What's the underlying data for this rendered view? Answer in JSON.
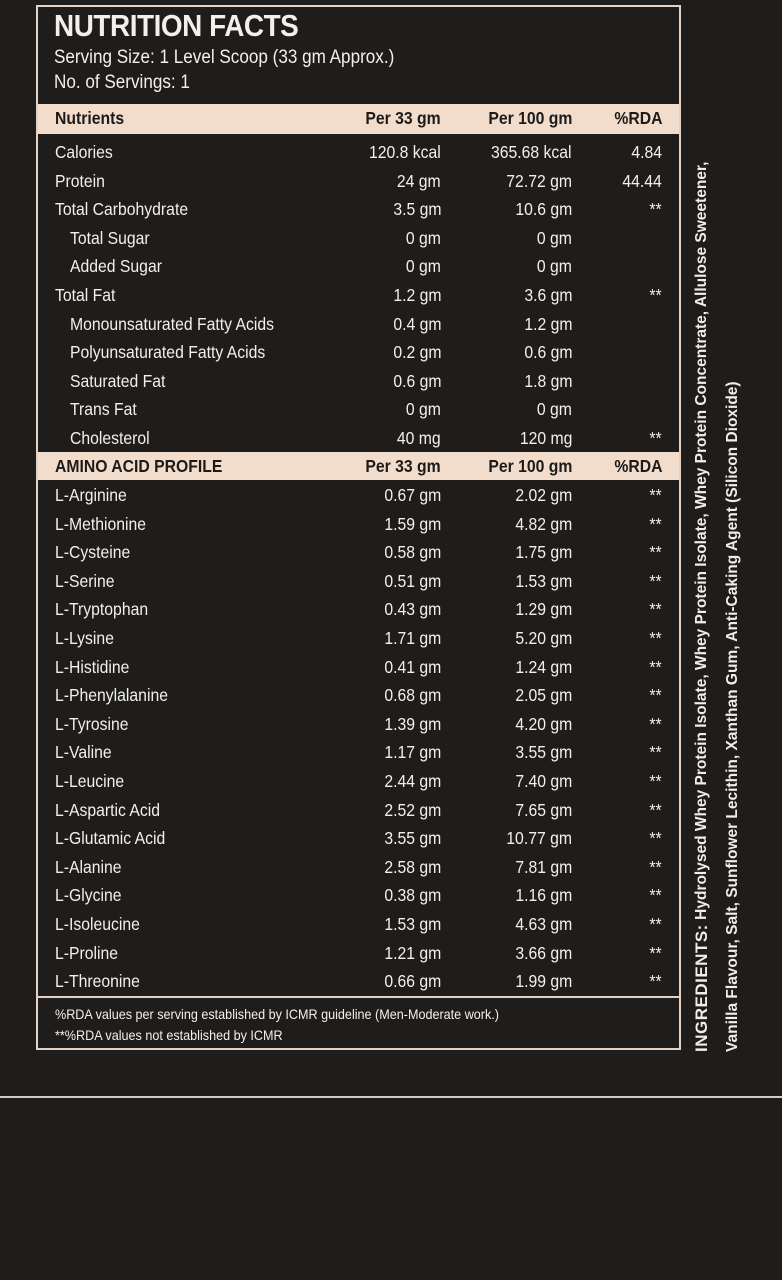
{
  "title": "NUTRITION FACTS",
  "serving_size": "Serving Size: 1 Level Scoop (33 gm Approx.)",
  "servings": "No. of Servings: 1",
  "nutrients_header": [
    "Nutrients",
    "Per 33 gm",
    "Per 100 gm",
    "%RDA"
  ],
  "nutrients": [
    {
      "name": "Calories",
      "per33": "120.8 kcal",
      "per100": "365.68 kcal",
      "rda": "4.84",
      "indent": false
    },
    {
      "name": "Protein",
      "per33": "24 gm",
      "per100": "72.72 gm",
      "rda": "44.44",
      "indent": false
    },
    {
      "name": "Total Carbohydrate",
      "per33": "3.5 gm",
      "per100": "10.6 gm",
      "rda": "**",
      "indent": false
    },
    {
      "name": "Total Sugar",
      "per33": "0 gm",
      "per100": "0 gm",
      "rda": "",
      "indent": true
    },
    {
      "name": "Added Sugar",
      "per33": "0 gm",
      "per100": "0 gm",
      "rda": "",
      "indent": true
    },
    {
      "name": "Total Fat",
      "per33": "1.2 gm",
      "per100": "3.6 gm",
      "rda": "**",
      "indent": false
    },
    {
      "name": "Monounsaturated Fatty Acids",
      "per33": "0.4 gm",
      "per100": "1.2 gm",
      "rda": "",
      "indent": true
    },
    {
      "name": "Polyunsaturated Fatty Acids",
      "per33": "0.2 gm",
      "per100": "0.6 gm",
      "rda": "",
      "indent": true
    },
    {
      "name": "Saturated Fat",
      "per33": "0.6 gm",
      "per100": "1.8 gm",
      "rda": "",
      "indent": true
    },
    {
      "name": "Trans Fat",
      "per33": "0 gm",
      "per100": "0 gm",
      "rda": "",
      "indent": true
    },
    {
      "name": "Cholesterol",
      "per33": "40 mg",
      "per100": "120 mg",
      "rda": "**",
      "indent": true
    }
  ],
  "amino_header": [
    "AMINO ACID PROFILE",
    "Per 33 gm",
    "Per 100 gm",
    "%RDA"
  ],
  "amino": [
    {
      "name": "L-Arginine",
      "per33": "0.67 gm",
      "per100": "2.02 gm",
      "rda": "**"
    },
    {
      "name": "L-Methionine",
      "per33": "1.59 gm",
      "per100": "4.82 gm",
      "rda": "**"
    },
    {
      "name": "L-Cysteine",
      "per33": "0.58 gm",
      "per100": "1.75 gm",
      "rda": "**"
    },
    {
      "name": "L-Serine",
      "per33": "0.51 gm",
      "per100": "1.53 gm",
      "rda": "**"
    },
    {
      "name": "L-Tryptophan",
      "per33": "0.43 gm",
      "per100": "1.29 gm",
      "rda": "**"
    },
    {
      "name": "L-Lysine",
      "per33": "1.71 gm",
      "per100": "5.20 gm",
      "rda": "**"
    },
    {
      "name": "L-Histidine",
      "per33": "0.41 gm",
      "per100": "1.24 gm",
      "rda": "**"
    },
    {
      "name": "L-Phenylalanine",
      "per33": "0.68 gm",
      "per100": "2.05 gm",
      "rda": "**"
    },
    {
      "name": "L-Tyrosine",
      "per33": "1.39 gm",
      "per100": "4.20 gm",
      "rda": "**"
    },
    {
      "name": "L-Valine",
      "per33": "1.17 gm",
      "per100": "3.55 gm",
      "rda": "**"
    },
    {
      "name": "L-Leucine",
      "per33": "2.44 gm",
      "per100": "7.40 gm",
      "rda": "**"
    },
    {
      "name": "L-Aspartic Acid",
      "per33": "2.52 gm",
      "per100": "7.65 gm",
      "rda": "**"
    },
    {
      "name": "L-Glutamic Acid",
      "per33": "3.55 gm",
      "per100": "10.77 gm",
      "rda": "**"
    },
    {
      "name": "L-Alanine",
      "per33": "2.58 gm",
      "per100": "7.81 gm",
      "rda": "**"
    },
    {
      "name": "L-Glycine",
      "per33": "0.38 gm",
      "per100": "1.16 gm",
      "rda": "**"
    },
    {
      "name": "L-Isoleucine",
      "per33": "1.53 gm",
      "per100": "4.63 gm",
      "rda": "**"
    },
    {
      "name": "L-Proline",
      "per33": "1.21 gm",
      "per100": "3.66 gm",
      "rda": "**"
    },
    {
      "name": "L-Threonine",
      "per33": "0.66 gm",
      "per100": "1.99 gm",
      "rda": "**"
    }
  ],
  "footnotes": [
    "%RDA values per serving established by ICMR guideline (Men-Moderate work.)",
    "**%RDA values not established by ICMR"
  ],
  "ingredients": {
    "label": "INGREDIENTS:",
    "line1": " Hydrolysed Whey Protein Isolate, Whey Protein Isolate, Whey Protein Concentrate, Allulose Sweetener,",
    "line2": "Vanilla Flavour, Salt, Sunflower Lecithin, Xanthan Gum, Anti-Caking Agent (Silicon Dioxide)"
  },
  "colors": {
    "background": "#1e1d1c",
    "band": "#f2dccb",
    "border": "#e6d2c3"
  }
}
